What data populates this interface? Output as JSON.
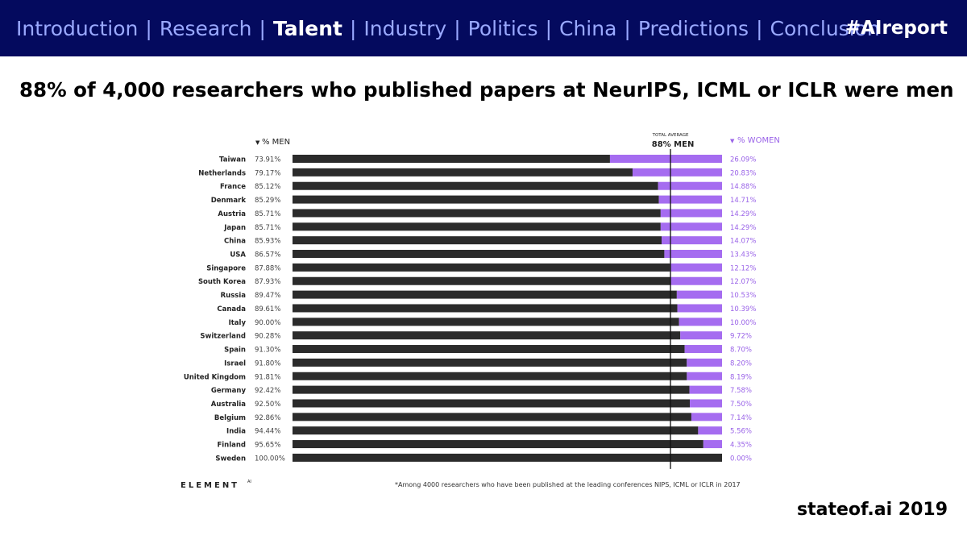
{
  "header": {
    "nav": [
      {
        "label": "Introduction",
        "active": false
      },
      {
        "label": "Research",
        "active": false
      },
      {
        "label": "Talent",
        "active": true
      },
      {
        "label": "Industry",
        "active": false
      },
      {
        "label": "Politics",
        "active": false
      },
      {
        "label": "China",
        "active": false
      },
      {
        "label": "Predictions",
        "active": false
      },
      {
        "label": "Conclusion",
        "active": false
      }
    ],
    "separator": "|",
    "hashtag": "#AIreport"
  },
  "slide": {
    "title": "88% of 4,000 researchers who published papers at NeurIPS, ICML or ICLR were men",
    "footer": "stateof.ai 2019"
  },
  "colors": {
    "nav_bg": "#040a5e",
    "nav_text": "#9aa9ff",
    "men": "#2b2b2b",
    "women": "#a56cf0",
    "women_text": "#9a63e8"
  },
  "chart_data": {
    "type": "bar",
    "stacked": true,
    "orientation": "horizontal",
    "men_header": "% MEN",
    "women_header": "% WOMEN",
    "average_label_small": "TOTAL AVERAGE",
    "average_label": "88% MEN",
    "average_value": 88,
    "categories": [
      "Taiwan",
      "Netherlands",
      "France",
      "Denmark",
      "Austria",
      "Japan",
      "China",
      "USA",
      "Singapore",
      "South Korea",
      "Russia",
      "Canada",
      "Italy",
      "Switzerland",
      "Spain",
      "Israel",
      "United Kingdom",
      "Germany",
      "Australia",
      "Belgium",
      "India",
      "Finland",
      "Sweden"
    ],
    "series": [
      {
        "name": "% MEN",
        "values": [
          73.91,
          79.17,
          85.12,
          85.29,
          85.71,
          85.71,
          85.93,
          86.57,
          87.88,
          87.93,
          89.47,
          89.61,
          90.0,
          90.28,
          91.3,
          91.8,
          91.81,
          92.42,
          92.5,
          92.86,
          94.44,
          95.65,
          100.0
        ]
      },
      {
        "name": "% WOMEN",
        "values": [
          26.09,
          20.83,
          14.88,
          14.71,
          14.29,
          14.29,
          14.07,
          13.43,
          12.12,
          12.07,
          10.53,
          10.39,
          10.0,
          9.72,
          8.7,
          8.2,
          8.19,
          7.58,
          7.5,
          7.14,
          5.56,
          4.35,
          0.0
        ]
      }
    ],
    "men_labels": [
      "73.91%",
      "79.17%",
      "85.12%",
      "85.29%",
      "85.71%",
      "85.71%",
      "85.93%",
      "86.57%",
      "87.88%",
      "87.93%",
      "89.47%",
      "89.61%",
      "90.00%",
      "90.28%",
      "91.30%",
      "91.80%",
      "91.81%",
      "92.42%",
      "92.50%",
      "92.86%",
      "94.44%",
      "95.65%",
      "100.00%"
    ],
    "women_labels": [
      "26.09%",
      "20.83%",
      "14.88%",
      "14.71%",
      "14.29%",
      "14.29%",
      "14.07%",
      "13.43%",
      "12.12%",
      "12.07%",
      "10.53%",
      "10.39%",
      "10.00%",
      "9.72%",
      "8.70%",
      "8.20%",
      "8.19%",
      "7.58%",
      "7.50%",
      "7.14%",
      "5.56%",
      "4.35%",
      "0.00%"
    ],
    "brand": "ELEMENT",
    "brand_suffix": "AI",
    "footnote": "*Among 4000 researchers who have been published at the leading conferences NIPS, ICML or ICLR in 2017"
  }
}
